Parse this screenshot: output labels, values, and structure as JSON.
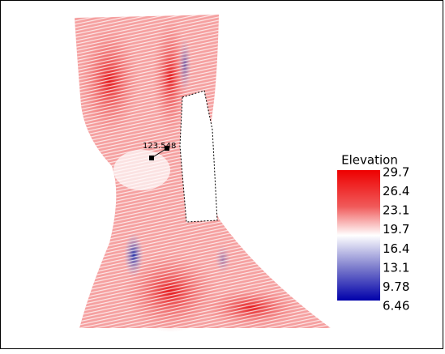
{
  "legend": {
    "title": "Elevation",
    "labels": [
      "29.7",
      "26.4",
      "23.1",
      "19.7",
      "16.4",
      "13.1",
      "9.78",
      "6.46"
    ]
  },
  "annotation": "123.548"
}
